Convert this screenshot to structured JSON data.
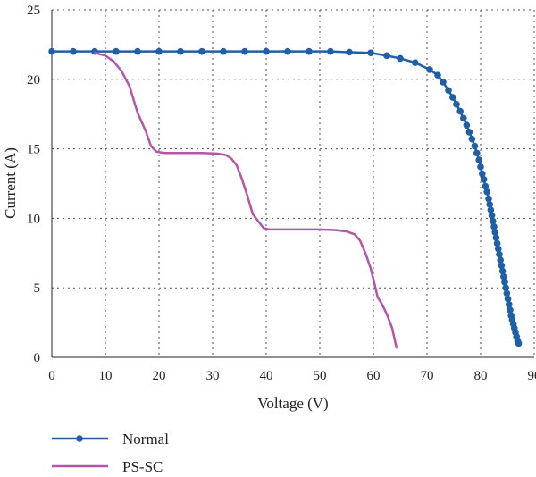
{
  "chart_data": {
    "type": "line",
    "xlabel": "Voltage (V)",
    "ylabel": "Current (A)",
    "xlim": [
      0,
      90
    ],
    "ylim": [
      0,
      25
    ],
    "xticks": [
      0,
      10,
      20,
      30,
      40,
      50,
      60,
      70,
      80,
      90
    ],
    "yticks": [
      0,
      5,
      10,
      15,
      20,
      25
    ],
    "grid": true,
    "legend_position": "bottom-left",
    "series": [
      {
        "name": "Normal",
        "color": "#1f5fa8",
        "marker": "circle",
        "x": [
          0,
          4,
          8,
          12,
          16,
          20,
          24,
          28,
          32,
          36,
          40,
          44,
          48,
          52,
          55.5,
          59.5,
          62.5,
          65,
          67.8,
          70.5,
          72,
          73,
          74,
          74.8,
          75.5,
          76.2,
          76.8,
          77.4,
          77.9,
          78.4,
          78.9,
          79.3,
          79.7,
          80,
          80.3,
          80.6,
          80.9,
          81.2,
          81.5,
          81.7,
          81.9,
          82.1,
          82.3,
          82.5,
          82.7,
          82.9,
          83.1,
          83.3,
          83.5,
          83.7,
          83.9,
          84.1,
          84.3,
          84.5,
          84.7,
          84.9,
          85.1,
          85.3,
          85.5,
          85.7,
          85.9,
          86.1,
          86.3,
          86.5,
          86.7,
          86.9,
          87.1
        ],
        "y": [
          22,
          22,
          22,
          22,
          22,
          22,
          22,
          22,
          22,
          22,
          22,
          22,
          22,
          22,
          21.95,
          21.9,
          21.7,
          21.5,
          21.2,
          20.7,
          20.3,
          19.8,
          19.2,
          18.7,
          18.2,
          17.7,
          17.2,
          16.7,
          16.2,
          15.7,
          15.2,
          14.7,
          14.2,
          13.7,
          13.2,
          12.8,
          12.3,
          11.9,
          11.4,
          11,
          10.6,
          10.2,
          9.8,
          9.4,
          9,
          8.6,
          8.2,
          7.8,
          7.4,
          7,
          6.6,
          6.2,
          5.8,
          5.4,
          5,
          4.6,
          4.2,
          3.8,
          3.4,
          3,
          2.7,
          2.4,
          2.1,
          1.8,
          1.5,
          1.2,
          1
        ]
      },
      {
        "name": "PS-SC",
        "color": "#b455a8",
        "marker": "none",
        "x": [
          8,
          10,
          11.5,
          13,
          14.5,
          16,
          17.5,
          18.5,
          19.5,
          21,
          24,
          28,
          31,
          32.5,
          33.5,
          34.5,
          35.5,
          36.5,
          37.5,
          38.5,
          39.5,
          40.5,
          42,
          46,
          50,
          53,
          55,
          56.5,
          57.5,
          58.5,
          59.5,
          60.2,
          60.8,
          61.5,
          62.5,
          63.5,
          64.3
        ],
        "y": [
          21.9,
          21.7,
          21.3,
          20.6,
          19.5,
          17.6,
          16.3,
          15.2,
          14.8,
          14.7,
          14.7,
          14.7,
          14.65,
          14.55,
          14.3,
          13.8,
          12.8,
          11.6,
          10.3,
          9.8,
          9.3,
          9.2,
          9.2,
          9.2,
          9.2,
          9.15,
          9.05,
          8.85,
          8.4,
          7.5,
          6.4,
          5.3,
          4.3,
          3.9,
          3.1,
          2.1,
          0.7
        ]
      }
    ]
  }
}
